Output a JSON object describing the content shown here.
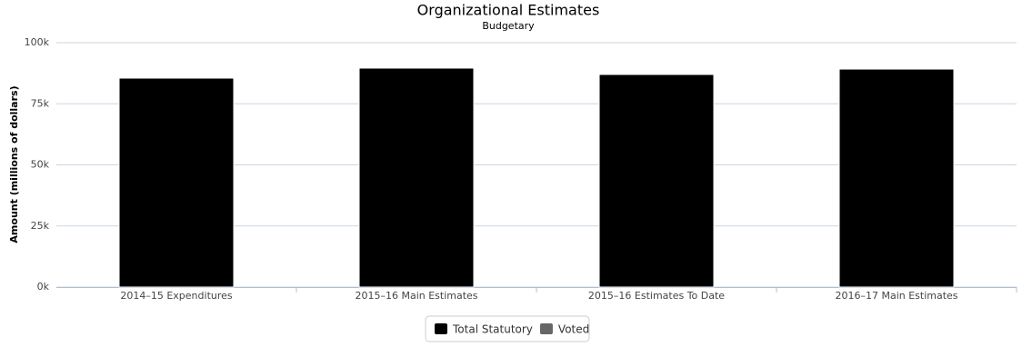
{
  "chart_data": {
    "type": "stacked-bar",
    "title": "Organizational Estimates",
    "subtitle": "Budgetary",
    "y_label": "Amount (millions of dollars)",
    "categories": [
      "2014–15 Expenditures",
      "2015–16 Main Estimates",
      "2015–16 Estimates To Date",
      "2016–17 Main Estimates"
    ],
    "series": [
      {
        "name": "Total Statutory",
        "color": "#000000",
        "values": [
          85500,
          89600,
          87000,
          89200
        ]
      },
      {
        "name": "Voted",
        "color": "#666666",
        "values": [
          0,
          0,
          0,
          0
        ]
      }
    ],
    "ylim": [
      0,
      100000
    ],
    "yticks": [
      {
        "value": 0,
        "label": "0k"
      },
      {
        "value": 25000,
        "label": "25k"
      },
      {
        "value": 50000,
        "label": "50k"
      },
      {
        "value": 75000,
        "label": "75k"
      },
      {
        "value": 100000,
        "label": "100k"
      }
    ],
    "grid": true
  }
}
